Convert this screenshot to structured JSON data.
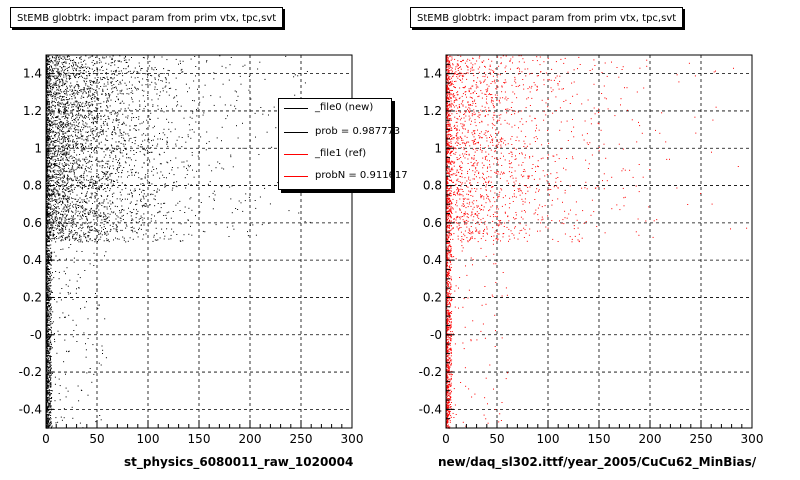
{
  "chart_data": [
    {
      "type": "scatter",
      "title": "StEMB globtrk: impact param from prim vtx, tpc,svt",
      "xlabel": "st_physics_6080011_raw_1020004",
      "ylabel": "",
      "xlim": [
        0,
        300
      ],
      "ylim": [
        -0.5,
        1.5
      ],
      "xticks": [
        "0",
        "50",
        "100",
        "150",
        "200",
        "250",
        "300"
      ],
      "xtick_values": [
        0,
        50,
        100,
        150,
        200,
        250,
        300
      ],
      "yticks": [
        "-0.4",
        "-0.2",
        "-0",
        "0.2",
        "0.4",
        "0.6",
        "0.8",
        "1",
        "1.2",
        "1.4"
      ],
      "ytick_values": [
        -0.4,
        -0.2,
        0,
        0.2,
        0.4,
        0.6,
        0.8,
        1.0,
        1.2,
        1.4
      ],
      "grid": true,
      "point_color": "#000000",
      "legend_position": "top-right",
      "legend": [
        {
          "label": "_file0 (new)",
          "color": "#000000"
        },
        {
          "label": "prob = 0.987773",
          "color": "#000000"
        },
        {
          "label": "_file1 (ref)",
          "color": "#ff0000"
        },
        {
          "label": "probN = 0.911617",
          "color": "#ff0000"
        }
      ]
    },
    {
      "type": "scatter",
      "title": "StEMB globtrk: impact param from prim vtx, tpc,svt",
      "xlabel": "new/daq_sl302.ittf/year_2005/CuCu62_MinBias/",
      "ylabel": "",
      "xlim": [
        0,
        300
      ],
      "ylim": [
        -0.5,
        1.5
      ],
      "xticks": [
        "0",
        "50",
        "100",
        "150",
        "200",
        "250",
        "300"
      ],
      "xtick_values": [
        0,
        50,
        100,
        150,
        200,
        250,
        300
      ],
      "yticks": [
        "-0.4",
        "-0.2",
        "-0",
        "0.2",
        "0.4",
        "0.6",
        "0.8",
        "1",
        "1.2",
        "1.4"
      ],
      "ytick_values": [
        -0.4,
        -0.2,
        0,
        0.2,
        0.4,
        0.6,
        0.8,
        1.0,
        1.2,
        1.4
      ],
      "grid": true,
      "point_color": "#ff0000"
    }
  ]
}
